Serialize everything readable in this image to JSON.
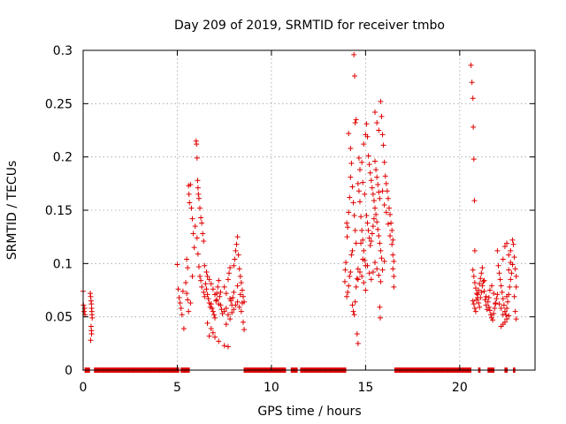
{
  "chart_data": {
    "type": "scatter",
    "title": "Day 209 of 2019, SRMTID for receiver tmbo",
    "xlabel": "GPS time / hours",
    "ylabel": "SRMTID / TECUs",
    "xlim": [
      0,
      24
    ],
    "ylim": [
      0,
      0.3
    ],
    "grid": true,
    "marker": "plus",
    "marker_color": "#e00000",
    "x_ticks": [
      {
        "value": 0,
        "label": "0"
      },
      {
        "value": 5,
        "label": "5"
      },
      {
        "value": 10,
        "label": "10"
      },
      {
        "value": 15,
        "label": "15"
      },
      {
        "value": 20,
        "label": "20"
      }
    ],
    "y_ticks": [
      {
        "value": 0,
        "label": "0"
      },
      {
        "value": 0.05,
        "label": "0.05"
      },
      {
        "value": 0.1,
        "label": "0.1"
      },
      {
        "value": 0.15,
        "label": "0.15"
      },
      {
        "value": 0.2,
        "label": "0.2"
      },
      {
        "value": 0.25,
        "label": "0.25"
      },
      {
        "value": 0.3,
        "label": "0.3"
      }
    ],
    "zero_segments": [
      [
        0.1,
        0.35
      ],
      [
        0.6,
        5.1
      ],
      [
        5.2,
        5.65
      ],
      [
        8.55,
        10.75
      ],
      [
        11.05,
        11.4
      ],
      [
        11.55,
        13.95
      ],
      [
        16.55,
        20.6
      ],
      [
        21.0,
        21.1
      ],
      [
        21.5,
        21.85
      ],
      [
        22.4,
        22.55
      ],
      [
        22.85,
        22.95
      ]
    ],
    "points": [
      [
        0.0,
        0.074
      ],
      [
        0.02,
        0.061
      ],
      [
        0.05,
        0.055
      ],
      [
        0.08,
        0.058
      ],
      [
        0.1,
        0.052
      ],
      [
        0.38,
        0.072
      ],
      [
        0.4,
        0.069
      ],
      [
        0.42,
        0.065
      ],
      [
        0.44,
        0.062
      ],
      [
        0.45,
        0.058
      ],
      [
        0.46,
        0.055
      ],
      [
        0.47,
        0.052
      ],
      [
        0.48,
        0.049
      ],
      [
        0.42,
        0.041
      ],
      [
        0.44,
        0.037
      ],
      [
        0.45,
        0.034
      ],
      [
        0.4,
        0.028
      ],
      [
        5.0,
        0.099
      ],
      [
        5.05,
        0.076
      ],
      [
        5.1,
        0.068
      ],
      [
        5.15,
        0.063
      ],
      [
        5.2,
        0.058
      ],
      [
        5.25,
        0.052
      ],
      [
        5.3,
        0.074
      ],
      [
        5.35,
        0.039
      ],
      [
        5.45,
        0.082
      ],
      [
        5.5,
        0.104
      ],
      [
        5.55,
        0.096
      ],
      [
        5.6,
        0.173
      ],
      [
        5.62,
        0.165
      ],
      [
        5.65,
        0.157
      ],
      [
        5.7,
        0.174
      ],
      [
        5.75,
        0.152
      ],
      [
        5.8,
        0.142
      ],
      [
        5.85,
        0.128
      ],
      [
        5.9,
        0.115
      ],
      [
        5.5,
        0.072
      ],
      [
        5.55,
        0.066
      ],
      [
        5.6,
        0.055
      ],
      [
        5.7,
        0.063
      ],
      [
        5.8,
        0.088
      ],
      [
        6.0,
        0.215
      ],
      [
        6.02,
        0.212
      ],
      [
        6.05,
        0.199
      ],
      [
        6.08,
        0.178
      ],
      [
        6.1,
        0.171
      ],
      [
        6.12,
        0.165
      ],
      [
        6.15,
        0.161
      ],
      [
        6.2,
        0.152
      ],
      [
        6.25,
        0.143
      ],
      [
        6.3,
        0.138
      ],
      [
        6.35,
        0.128
      ],
      [
        6.4,
        0.121
      ],
      [
        5.95,
        0.135
      ],
      [
        6.05,
        0.124
      ],
      [
        6.1,
        0.109
      ],
      [
        6.15,
        0.097
      ],
      [
        6.2,
        0.088
      ],
      [
        6.25,
        0.084
      ],
      [
        6.3,
        0.078
      ],
      [
        6.4,
        0.073
      ],
      [
        6.45,
        0.069
      ],
      [
        6.5,
        0.081
      ],
      [
        6.55,
        0.076
      ],
      [
        6.6,
        0.071
      ],
      [
        6.65,
        0.067
      ],
      [
        6.7,
        0.063
      ],
      [
        6.75,
        0.059
      ],
      [
        6.8,
        0.062
      ],
      [
        6.85,
        0.058
      ],
      [
        6.9,
        0.055
      ],
      [
        6.95,
        0.052
      ],
      [
        7.0,
        0.049
      ],
      [
        7.05,
        0.065
      ],
      [
        7.1,
        0.072
      ],
      [
        7.15,
        0.078
      ],
      [
        7.2,
        0.084
      ],
      [
        7.25,
        0.069
      ],
      [
        7.3,
        0.061
      ],
      [
        7.35,
        0.057
      ],
      [
        7.4,
        0.053
      ],
      [
        6.45,
        0.098
      ],
      [
        6.55,
        0.092
      ],
      [
        6.6,
        0.088
      ],
      [
        6.7,
        0.085
      ],
      [
        6.8,
        0.081
      ],
      [
        6.9,
        0.076
      ],
      [
        7.0,
        0.071
      ],
      [
        7.1,
        0.066
      ],
      [
        7.2,
        0.062
      ],
      [
        7.3,
        0.073
      ],
      [
        6.6,
        0.044
      ],
      [
        6.8,
        0.039
      ],
      [
        6.9,
        0.035
      ],
      [
        7.0,
        0.031
      ],
      [
        7.2,
        0.027
      ],
      [
        7.5,
        0.023
      ],
      [
        7.7,
        0.022
      ],
      [
        6.7,
        0.032
      ],
      [
        7.5,
        0.078
      ],
      [
        7.6,
        0.072
      ],
      [
        7.7,
        0.085
      ],
      [
        7.75,
        0.091
      ],
      [
        7.8,
        0.096
      ],
      [
        7.85,
        0.065
      ],
      [
        7.9,
        0.061
      ],
      [
        7.95,
        0.068
      ],
      [
        8.0,
        0.098
      ],
      [
        8.05,
        0.104
      ],
      [
        8.1,
        0.112
      ],
      [
        8.15,
        0.118
      ],
      [
        8.2,
        0.125
      ],
      [
        8.25,
        0.108
      ],
      [
        8.3,
        0.095
      ],
      [
        8.35,
        0.088
      ],
      [
        8.4,
        0.082
      ],
      [
        8.45,
        0.075
      ],
      [
        8.5,
        0.069
      ],
      [
        8.55,
        0.064
      ],
      [
        7.5,
        0.055
      ],
      [
        7.6,
        0.058
      ],
      [
        7.7,
        0.052
      ],
      [
        7.8,
        0.048
      ],
      [
        7.9,
        0.054
      ],
      [
        8.0,
        0.057
      ],
      [
        8.1,
        0.061
      ],
      [
        8.2,
        0.064
      ],
      [
        8.3,
        0.059
      ],
      [
        8.4,
        0.055
      ],
      [
        8.5,
        0.045
      ],
      [
        8.55,
        0.038
      ],
      [
        7.6,
        0.043
      ],
      [
        7.8,
        0.067
      ],
      [
        8.0,
        0.073
      ],
      [
        8.2,
        0.079
      ],
      [
        8.35,
        0.071
      ],
      [
        8.45,
        0.063
      ],
      [
        13.9,
        0.083
      ],
      [
        13.92,
        0.094
      ],
      [
        13.95,
        0.101
      ],
      [
        14.0,
        0.138
      ],
      [
        14.02,
        0.125
      ],
      [
        14.05,
        0.134
      ],
      [
        14.1,
        0.148
      ],
      [
        14.15,
        0.162
      ],
      [
        14.2,
        0.181
      ],
      [
        14.25,
        0.194
      ],
      [
        14.3,
        0.172
      ],
      [
        14.35,
        0.157
      ],
      [
        14.4,
        0.145
      ],
      [
        14.45,
        0.131
      ],
      [
        14.5,
        0.119
      ],
      [
        14.1,
        0.222
      ],
      [
        14.2,
        0.208
      ],
      [
        14.0,
        0.069
      ],
      [
        14.05,
        0.073
      ],
      [
        14.1,
        0.079
      ],
      [
        14.15,
        0.088
      ],
      [
        14.2,
        0.092
      ],
      [
        14.25,
        0.108
      ],
      [
        14.3,
        0.112
      ],
      [
        14.35,
        0.055
      ],
      [
        14.4,
        0.052
      ],
      [
        14.45,
        0.064
      ],
      [
        14.5,
        0.078
      ],
      [
        14.55,
        0.086
      ],
      [
        14.6,
        0.095
      ],
      [
        14.3,
        0.061
      ],
      [
        14.38,
        0.296
      ],
      [
        14.42,
        0.276
      ],
      [
        14.45,
        0.232
      ],
      [
        14.5,
        0.235
      ],
      [
        14.55,
        0.034
      ],
      [
        14.6,
        0.025
      ],
      [
        14.6,
        0.175
      ],
      [
        14.65,
        0.168
      ],
      [
        14.7,
        0.158
      ],
      [
        14.75,
        0.144
      ],
      [
        14.8,
        0.131
      ],
      [
        14.85,
        0.122
      ],
      [
        14.9,
        0.112
      ],
      [
        14.95,
        0.103
      ],
      [
        15.0,
        0.098
      ],
      [
        14.65,
        0.199
      ],
      [
        14.7,
        0.188
      ],
      [
        14.8,
        0.195
      ],
      [
        14.9,
        0.212
      ],
      [
        15.0,
        0.221
      ],
      [
        14.85,
        0.176
      ],
      [
        14.95,
        0.165
      ],
      [
        14.6,
        0.085
      ],
      [
        14.7,
        0.092
      ],
      [
        14.8,
        0.088
      ],
      [
        14.9,
        0.082
      ],
      [
        15.0,
        0.075
      ],
      [
        14.75,
        0.119
      ],
      [
        14.85,
        0.104
      ],
      [
        15.05,
        0.231
      ],
      [
        15.1,
        0.219
      ],
      [
        15.15,
        0.201
      ],
      [
        15.2,
        0.193
      ],
      [
        15.25,
        0.185
      ],
      [
        15.3,
        0.178
      ],
      [
        15.35,
        0.171
      ],
      [
        15.4,
        0.165
      ],
      [
        15.45,
        0.159
      ],
      [
        15.5,
        0.152
      ],
      [
        15.55,
        0.146
      ],
      [
        15.6,
        0.139
      ],
      [
        15.65,
        0.132
      ],
      [
        15.7,
        0.126
      ],
      [
        15.75,
        0.119
      ],
      [
        15.8,
        0.112
      ],
      [
        15.85,
        0.105
      ],
      [
        15.05,
        0.145
      ],
      [
        15.1,
        0.138
      ],
      [
        15.15,
        0.131
      ],
      [
        15.2,
        0.124
      ],
      [
        15.25,
        0.117
      ],
      [
        15.3,
        0.121
      ],
      [
        15.35,
        0.128
      ],
      [
        15.4,
        0.135
      ],
      [
        15.45,
        0.142
      ],
      [
        15.5,
        0.196
      ],
      [
        15.55,
        0.188
      ],
      [
        15.6,
        0.181
      ],
      [
        15.65,
        0.174
      ],
      [
        15.7,
        0.167
      ],
      [
        15.75,
        0.161
      ],
      [
        15.1,
        0.098
      ],
      [
        15.2,
        0.091
      ],
      [
        15.3,
        0.085
      ],
      [
        15.4,
        0.092
      ],
      [
        15.5,
        0.101
      ],
      [
        15.6,
        0.095
      ],
      [
        15.7,
        0.089
      ],
      [
        15.8,
        0.083
      ],
      [
        15.9,
        0.094
      ],
      [
        16.0,
        0.102
      ],
      [
        15.5,
        0.242
      ],
      [
        15.6,
        0.232
      ],
      [
        15.7,
        0.225
      ],
      [
        15.8,
        0.252
      ],
      [
        15.85,
        0.238
      ],
      [
        15.9,
        0.221
      ],
      [
        15.95,
        0.211
      ],
      [
        16.0,
        0.195
      ],
      [
        16.05,
        0.182
      ],
      [
        16.1,
        0.175
      ],
      [
        16.15,
        0.168
      ],
      [
        16.2,
        0.161
      ],
      [
        16.25,
        0.152
      ],
      [
        16.3,
        0.146
      ],
      [
        16.35,
        0.138
      ],
      [
        16.4,
        0.131
      ],
      [
        16.45,
        0.122
      ],
      [
        15.9,
        0.168
      ],
      [
        16.0,
        0.155
      ],
      [
        16.1,
        0.148
      ],
      [
        16.2,
        0.137
      ],
      [
        16.3,
        0.126
      ],
      [
        16.4,
        0.118
      ],
      [
        16.45,
        0.108
      ],
      [
        16.5,
        0.102
      ],
      [
        16.45,
        0.095
      ],
      [
        16.5,
        0.088
      ],
      [
        16.5,
        0.078
      ],
      [
        15.75,
        0.059
      ],
      [
        15.78,
        0.049
      ],
      [
        20.6,
        0.286
      ],
      [
        20.65,
        0.27
      ],
      [
        20.7,
        0.255
      ],
      [
        20.72,
        0.228
      ],
      [
        20.75,
        0.198
      ],
      [
        20.78,
        0.159
      ],
      [
        20.8,
        0.112
      ],
      [
        20.7,
        0.094
      ],
      [
        20.75,
        0.088
      ],
      [
        20.8,
        0.082
      ],
      [
        20.85,
        0.077
      ],
      [
        20.9,
        0.072
      ],
      [
        20.95,
        0.068
      ],
      [
        21.0,
        0.075
      ],
      [
        21.05,
        0.081
      ],
      [
        21.1,
        0.086
      ],
      [
        21.15,
        0.091
      ],
      [
        21.2,
        0.096
      ],
      [
        21.25,
        0.083
      ],
      [
        21.3,
        0.074
      ],
      [
        21.35,
        0.066
      ],
      [
        21.4,
        0.061
      ],
      [
        21.45,
        0.057
      ],
      [
        20.7,
        0.065
      ],
      [
        20.75,
        0.062
      ],
      [
        20.8,
        0.058
      ],
      [
        20.85,
        0.055
      ],
      [
        20.9,
        0.066
      ],
      [
        20.95,
        0.071
      ],
      [
        21.0,
        0.063
      ],
      [
        21.05,
        0.059
      ],
      [
        21.1,
        0.068
      ],
      [
        21.15,
        0.073
      ],
      [
        21.2,
        0.079
      ],
      [
        21.3,
        0.084
      ],
      [
        21.4,
        0.069
      ],
      [
        21.5,
        0.064
      ],
      [
        21.55,
        0.059
      ],
      [
        21.6,
        0.056
      ],
      [
        21.65,
        0.052
      ],
      [
        21.7,
        0.049
      ],
      [
        21.75,
        0.047
      ],
      [
        21.8,
        0.053
      ],
      [
        21.85,
        0.058
      ],
      [
        21.9,
        0.062
      ],
      [
        21.95,
        0.067
      ],
      [
        22.0,
        0.071
      ],
      [
        21.6,
        0.075
      ],
      [
        21.7,
        0.079
      ],
      [
        21.8,
        0.072
      ],
      [
        21.9,
        0.063
      ],
      [
        21.55,
        0.068
      ],
      [
        22.0,
        0.112
      ],
      [
        22.05,
        0.098
      ],
      [
        22.1,
        0.091
      ],
      [
        22.15,
        0.085
      ],
      [
        22.2,
        0.079
      ],
      [
        22.25,
        0.073
      ],
      [
        22.3,
        0.067
      ],
      [
        22.35,
        0.061
      ],
      [
        22.4,
        0.055
      ],
      [
        22.45,
        0.052
      ],
      [
        22.5,
        0.058
      ],
      [
        22.55,
        0.064
      ],
      [
        22.6,
        0.071
      ],
      [
        22.65,
        0.078
      ],
      [
        22.7,
        0.085
      ],
      [
        22.75,
        0.091
      ],
      [
        22.8,
        0.099
      ],
      [
        22.3,
        0.104
      ],
      [
        22.4,
        0.116
      ],
      [
        22.5,
        0.119
      ],
      [
        22.6,
        0.108
      ],
      [
        22.7,
        0.112
      ],
      [
        22.8,
        0.122
      ],
      [
        22.85,
        0.118
      ],
      [
        22.9,
        0.106
      ],
      [
        22.95,
        0.095
      ],
      [
        23.0,
        0.088
      ],
      [
        23.0,
        0.078
      ],
      [
        22.9,
        0.069
      ],
      [
        22.95,
        0.055
      ],
      [
        23.0,
        0.048
      ],
      [
        22.1,
        0.062
      ],
      [
        22.2,
        0.058
      ],
      [
        22.3,
        0.052
      ],
      [
        22.4,
        0.045
      ],
      [
        22.5,
        0.048
      ],
      [
        22.6,
        0.051
      ],
      [
        22.2,
        0.041
      ],
      [
        22.3,
        0.043
      ],
      [
        22.5,
        0.069
      ],
      [
        22.6,
        0.094
      ],
      [
        22.7,
        0.101
      ]
    ]
  }
}
